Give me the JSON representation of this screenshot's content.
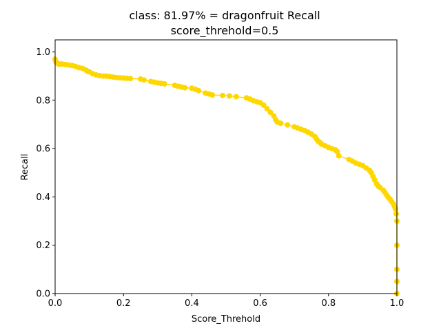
{
  "chart_data": {
    "type": "line",
    "title_line1": "class: 81.97% = dragonfruit Recall",
    "title_line2": "score_threhold=0.5",
    "xlabel": "Score_Threhold",
    "ylabel": "Recall",
    "xlim": [
      0,
      1
    ],
    "ylim": [
      0,
      1.05
    ],
    "xticks": [
      "0.0",
      "0.2",
      "0.4",
      "0.6",
      "0.8",
      "1.0"
    ],
    "yticks": [
      "0.0",
      "0.2",
      "0.4",
      "0.6",
      "0.8",
      "1.0"
    ],
    "grid": false,
    "color": "#ffd700",
    "series": [
      {
        "x": [
          0.0,
          0.002,
          0.005,
          0.01,
          0.015,
          0.02,
          0.03,
          0.04,
          0.05,
          0.06,
          0.07,
          0.08,
          0.09,
          0.095,
          0.1,
          0.11,
          0.12,
          0.13,
          0.14,
          0.15,
          0.16,
          0.17,
          0.18,
          0.19,
          0.2,
          0.21,
          0.22,
          0.25,
          0.26,
          0.28,
          0.29,
          0.3,
          0.31,
          0.32,
          0.35,
          0.36,
          0.37,
          0.38,
          0.4,
          0.41,
          0.42,
          0.44,
          0.45,
          0.46,
          0.49,
          0.51,
          0.53,
          0.56,
          0.57,
          0.58,
          0.59,
          0.6,
          0.61,
          0.62,
          0.63,
          0.64,
          0.645,
          0.65,
          0.66,
          0.68,
          0.7,
          0.71,
          0.72,
          0.73,
          0.74,
          0.75,
          0.76,
          0.765,
          0.77,
          0.775,
          0.78,
          0.79,
          0.8,
          0.81,
          0.82,
          0.825,
          0.83,
          0.86,
          0.87,
          0.88,
          0.89,
          0.9,
          0.91,
          0.92,
          0.925,
          0.93,
          0.935,
          0.94,
          0.945,
          0.95,
          0.96,
          0.965,
          0.97,
          0.975,
          0.98,
          0.985,
          0.99,
          0.993,
          0.996,
          0.998,
          1.0,
          1.0,
          1.0,
          1.0,
          1.0
        ],
        "y": [
          0.97,
          0.96,
          0.955,
          0.95,
          0.95,
          0.95,
          0.948,
          0.946,
          0.944,
          0.94,
          0.935,
          0.932,
          0.925,
          0.92,
          0.918,
          0.91,
          0.905,
          0.902,
          0.9,
          0.9,
          0.898,
          0.896,
          0.894,
          0.893,
          0.892,
          0.891,
          0.89,
          0.888,
          0.884,
          0.878,
          0.875,
          0.872,
          0.87,
          0.868,
          0.862,
          0.858,
          0.855,
          0.852,
          0.85,
          0.846,
          0.84,
          0.83,
          0.826,
          0.822,
          0.82,
          0.818,
          0.815,
          0.81,
          0.805,
          0.798,
          0.794,
          0.79,
          0.78,
          0.765,
          0.75,
          0.735,
          0.72,
          0.71,
          0.705,
          0.698,
          0.69,
          0.685,
          0.68,
          0.675,
          0.668,
          0.66,
          0.65,
          0.64,
          0.63,
          0.625,
          0.618,
          0.612,
          0.605,
          0.6,
          0.595,
          0.588,
          0.57,
          0.555,
          0.548,
          0.54,
          0.535,
          0.53,
          0.52,
          0.51,
          0.5,
          0.485,
          0.47,
          0.455,
          0.445,
          0.44,
          0.428,
          0.418,
          0.408,
          0.398,
          0.39,
          0.38,
          0.37,
          0.36,
          0.35,
          0.33,
          0.3,
          0.2,
          0.1,
          0.05,
          0.0
        ]
      }
    ]
  }
}
